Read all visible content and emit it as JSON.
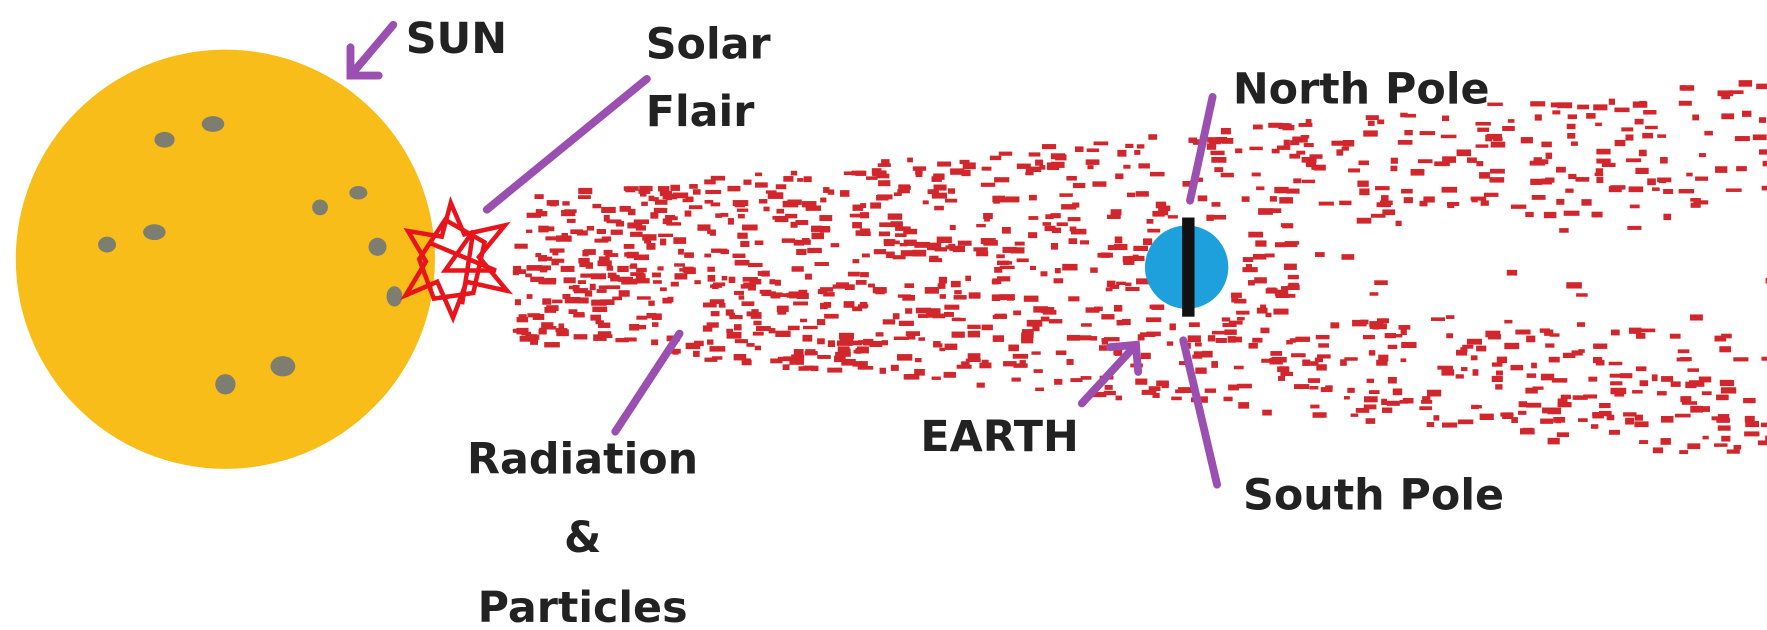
{
  "labels": [
    {
      "name": "sun",
      "lines": [
        "SUN"
      ]
    },
    {
      "name": "solar-flair",
      "lines": [
        "Solar",
        "Flair"
      ]
    },
    {
      "name": "north-pole",
      "lines": [
        "North Pole"
      ]
    },
    {
      "name": "radiation",
      "lines": [
        "Radiation",
        "&",
        "Particles"
      ]
    },
    {
      "name": "earth",
      "lines": [
        "EARTH"
      ]
    },
    {
      "name": "south-pole",
      "lines": [
        "South Pole"
      ]
    }
  ]
}
